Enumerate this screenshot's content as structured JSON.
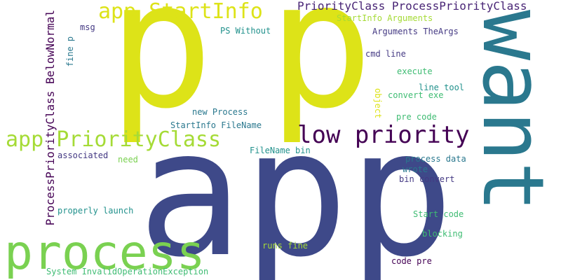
{
  "palette": {
    "background": "#ffffff",
    "yellow": "#dde318",
    "lime": "#a5db36",
    "green": "#7ad151",
    "mint": "#3fbc73",
    "teal": "#2a788e",
    "tealdark": "#21918c",
    "blue": "#3e4989",
    "indigo": "#443983",
    "purple": "#440154",
    "darkpurple": "#482475"
  },
  "words": {
    "app_big": "app",
    "p_left": "p",
    "p_right": "p",
    "want": "want",
    "process": "process",
    "low_priority": "low priority",
    "app_priorityclass": "app PriorityClass",
    "app_startinfo": "app StartInfo",
    "priorityclass_processpriorityclass": "PriorityClass ProcessPriorityClass",
    "processpriorityclass_belownormal": "ProcessPriorityClass BelowNormal",
    "startinfo_arguments": "StartInfo Arguments",
    "arguments_theargs": "Arguments TheArgs",
    "msg": "msg",
    "ps_without": "PS Without",
    "fine_p": "fine p",
    "cmd_line": "cmd line",
    "execute": "execute",
    "line_tool": "line tool",
    "object": "object",
    "convert_exe": "convert exe",
    "new_process": "new Process",
    "pre_code": "pre code",
    "startinfo_filename": "StartInfo FileName",
    "filename_bin": "FileName bin",
    "associated": "associated",
    "need": "need",
    "process_data": "process data",
    "wrote": "wrote",
    "bin_convert": "bin convert",
    "properly_launch": "properly launch",
    "start_code": "Start code",
    "blocking": "blocking",
    "runs_fine": "runs fine",
    "code_pre": "code pre",
    "system_invalidoperationexception": "System InvalidOperationException"
  }
}
